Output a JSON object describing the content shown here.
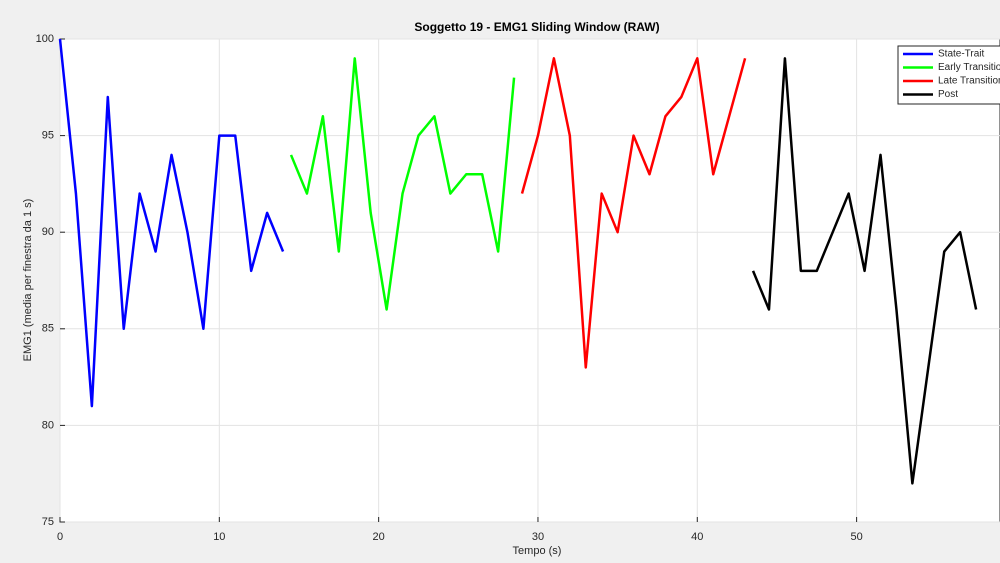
{
  "chart_data": {
    "type": "line",
    "title": "Soggetto 19 - EMG1 Sliding Window (RAW)",
    "x_label": "Tempo (s)",
    "y_label": "EMG1 (media per finestra da 1 s)",
    "series": [
      {
        "name": "State-Trait",
        "color": "#0000ff",
        "x": [
          0,
          1,
          2,
          3,
          4,
          5,
          6,
          7,
          8,
          9,
          10,
          11,
          12,
          13,
          14
        ],
        "values": [
          100,
          92,
          81,
          97,
          85,
          92,
          89,
          94,
          90,
          85,
          95,
          95,
          88,
          91,
          89
        ]
      },
      {
        "name": "Early Transition",
        "color": "#00ff00",
        "x": [
          14.5,
          15.5,
          16.5,
          17.5,
          18.5,
          19.5,
          20.5,
          21.5,
          22.5,
          23.5,
          24.5,
          25.5,
          26.5,
          27.5,
          28.5
        ],
        "values": [
          94,
          92,
          96,
          89,
          99,
          91,
          86,
          92,
          95,
          96,
          92,
          93,
          93,
          89,
          98
        ]
      },
      {
        "name": "Late Transition",
        "color": "#ff0000",
        "x": [
          29,
          30,
          31,
          32,
          33,
          34,
          35,
          36,
          37,
          38,
          39,
          40,
          41,
          42,
          43
        ],
        "values": [
          92,
          95,
          99,
          95,
          83,
          92,
          90,
          95,
          93,
          96,
          97,
          99,
          93,
          96,
          99
        ]
      },
      {
        "name": "Post",
        "color": "#000000",
        "x": [
          43.5,
          44.5,
          45.5,
          46.5,
          47.5,
          48.5,
          49.5,
          50.5,
          51.5,
          52.5,
          53.5,
          54.5,
          55.5,
          56.5,
          57.5
        ],
        "values": [
          88,
          86,
          99,
          88,
          88,
          90,
          92,
          88,
          94,
          86,
          77,
          83,
          89,
          90,
          86
        ]
      }
    ],
    "xlim": [
      0,
      59
    ],
    "xticks": [
      0,
      10,
      20,
      30,
      40,
      50
    ],
    "ylim": [
      75,
      100
    ],
    "yticks": [
      75,
      80,
      85,
      90,
      95,
      100
    ],
    "grid": true,
    "legend_position": "northeast"
  }
}
